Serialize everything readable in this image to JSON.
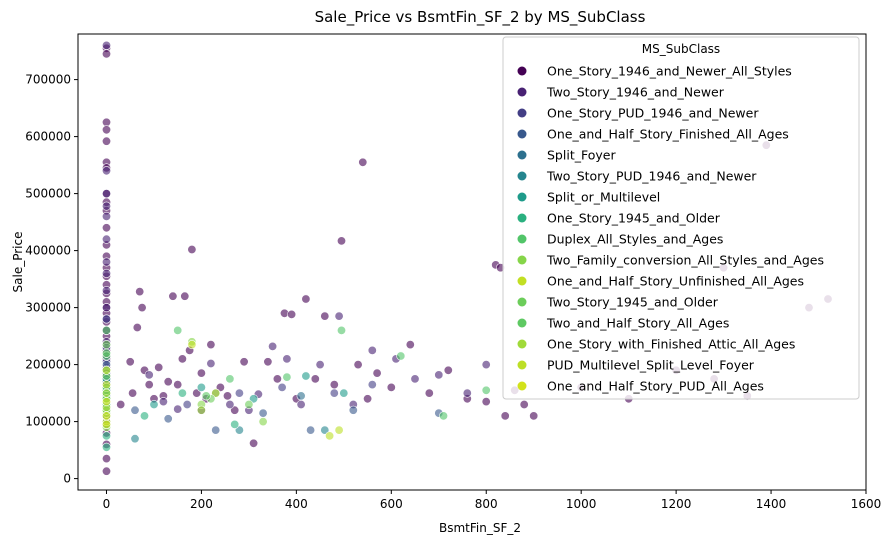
{
  "chart_data": {
    "type": "scatter",
    "title": "Sale_Price vs BsmtFin_SF_2 by MS_SubClass",
    "xlabel": "BsmtFin_SF_2",
    "ylabel": "Sale_Price",
    "xlim": [
      -60,
      1600
    ],
    "ylim": [
      -20000,
      780000
    ],
    "xticks": [
      0,
      200,
      400,
      600,
      800,
      1000,
      1200,
      1400,
      1600
    ],
    "yticks": [
      0,
      100000,
      200000,
      300000,
      400000,
      500000,
      600000,
      700000
    ],
    "grid": false,
    "legend": {
      "title": "MS_SubClass",
      "placement": "top-right"
    },
    "series": [
      {
        "name": "One_Story_1946_and_Newer_All_Styles",
        "color": "#440154",
        "points": [
          [
            0,
            755000
          ],
          [
            0,
            745000
          ],
          [
            0,
            625000
          ],
          [
            0,
            612000
          ],
          [
            0,
            592000
          ],
          [
            0,
            555000
          ],
          [
            0,
            545000
          ],
          [
            0,
            500000
          ],
          [
            0,
            485000
          ],
          [
            0,
            470000
          ],
          [
            0,
            440000
          ],
          [
            0,
            410000
          ],
          [
            0,
            390000
          ],
          [
            0,
            370000
          ],
          [
            0,
            355000
          ],
          [
            0,
            340000
          ],
          [
            0,
            325000
          ],
          [
            0,
            310000
          ],
          [
            0,
            300000
          ],
          [
            0,
            290000
          ],
          [
            0,
            275000
          ],
          [
            0,
            260000
          ],
          [
            0,
            250000
          ],
          [
            0,
            235000
          ],
          [
            0,
            225000
          ],
          [
            0,
            210000
          ],
          [
            0,
            195000
          ],
          [
            0,
            180000
          ],
          [
            0,
            165000
          ],
          [
            0,
            150000
          ],
          [
            0,
            140000
          ],
          [
            0,
            125000
          ],
          [
            0,
            110000
          ],
          [
            0,
            95000
          ],
          [
            0,
            80000
          ],
          [
            0,
            60000
          ],
          [
            0,
            35000
          ],
          [
            0,
            13000
          ],
          [
            30,
            130000
          ],
          [
            50,
            205000
          ],
          [
            55,
            150000
          ],
          [
            65,
            265000
          ],
          [
            70,
            328000
          ],
          [
            75,
            300000
          ],
          [
            80,
            190000
          ],
          [
            90,
            165000
          ],
          [
            100,
            140000
          ],
          [
            110,
            195000
          ],
          [
            120,
            145000
          ],
          [
            130,
            170000
          ],
          [
            140,
            320000
          ],
          [
            150,
            165000
          ],
          [
            160,
            210000
          ],
          [
            165,
            320000
          ],
          [
            175,
            225000
          ],
          [
            180,
            402000
          ],
          [
            190,
            150000
          ],
          [
            200,
            185000
          ],
          [
            210,
            140000
          ],
          [
            220,
            235000
          ],
          [
            240,
            160000
          ],
          [
            255,
            145000
          ],
          [
            270,
            120000
          ],
          [
            290,
            205000
          ],
          [
            310,
            62000
          ],
          [
            340,
            205000
          ],
          [
            360,
            175000
          ],
          [
            375,
            290000
          ],
          [
            390,
            288000
          ],
          [
            400,
            140000
          ],
          [
            420,
            315000
          ],
          [
            440,
            175000
          ],
          [
            460,
            285000
          ],
          [
            480,
            165000
          ],
          [
            495,
            417000
          ],
          [
            530,
            200000
          ],
          [
            540,
            555000
          ],
          [
            550,
            140000
          ],
          [
            570,
            185000
          ],
          [
            600,
            160000
          ],
          [
            640,
            235000
          ],
          [
            680,
            150000
          ],
          [
            720,
            190000
          ],
          [
            760,
            140000
          ],
          [
            800,
            135000
          ],
          [
            820,
            375000
          ],
          [
            830,
            370000
          ],
          [
            840,
            110000
          ],
          [
            860,
            155000
          ],
          [
            880,
            130000
          ],
          [
            900,
            110000
          ],
          [
            1000,
            160000
          ],
          [
            1100,
            140000
          ],
          [
            1200,
            190000
          ],
          [
            1280,
            175000
          ],
          [
            1300,
            370000
          ],
          [
            1350,
            145000
          ],
          [
            1390,
            585000
          ],
          [
            1480,
            300000
          ],
          [
            1520,
            315000
          ]
        ]
      },
      {
        "name": "Two_Story_1946_and_Newer",
        "color": "#482173",
        "points": [
          [
            0,
            760000
          ],
          [
            0,
            540000
          ],
          [
            0,
            500000
          ],
          [
            0,
            478000
          ],
          [
            0,
            460000
          ],
          [
            0,
            420000
          ],
          [
            0,
            380000
          ],
          [
            0,
            360000
          ],
          [
            0,
            330000
          ],
          [
            0,
            300000
          ],
          [
            0,
            280000
          ],
          [
            0,
            240000
          ],
          [
            0,
            215000
          ],
          [
            0,
            190000
          ],
          [
            0,
            175000
          ],
          [
            0,
            155000
          ],
          [
            0,
            120000
          ],
          [
            0,
            95000
          ],
          [
            90,
            182000
          ],
          [
            120,
            135000
          ],
          [
            150,
            122000
          ],
          [
            200,
            120000
          ],
          [
            220,
            202000
          ],
          [
            260,
            130000
          ],
          [
            300,
            120000
          ],
          [
            320,
            148000
          ],
          [
            350,
            232000
          ],
          [
            380,
            210000
          ],
          [
            410,
            130000
          ],
          [
            450,
            200000
          ],
          [
            490,
            285000
          ],
          [
            520,
            130000
          ],
          [
            560,
            225000
          ],
          [
            610,
            210000
          ],
          [
            650,
            175000
          ],
          [
            700,
            182000
          ],
          [
            760,
            150000
          ],
          [
            800,
            200000
          ]
        ]
      },
      {
        "name": "One_Story_PUD_1946_and_Newer",
        "color": "#433e85",
        "points": [
          [
            0,
            280000
          ],
          [
            0,
            260000
          ],
          [
            0,
            230000
          ],
          [
            0,
            205000
          ],
          [
            0,
            185000
          ],
          [
            0,
            170000
          ],
          [
            0,
            145000
          ],
          [
            170,
            130000
          ],
          [
            280,
            150000
          ],
          [
            370,
            160000
          ],
          [
            480,
            150000
          ],
          [
            560,
            165000
          ]
        ]
      },
      {
        "name": "One_and_Half_Story_Finished_All_Ages",
        "color": "#38588c",
        "points": [
          [
            0,
            200000
          ],
          [
            0,
            180000
          ],
          [
            0,
            160000
          ],
          [
            0,
            140000
          ],
          [
            0,
            118000
          ],
          [
            0,
            100000
          ],
          [
            60,
            120000
          ],
          [
            130,
            105000
          ],
          [
            230,
            85000
          ],
          [
            330,
            115000
          ],
          [
            430,
            85000
          ],
          [
            520,
            120000
          ],
          [
            700,
            115000
          ]
        ]
      },
      {
        "name": "Split_Foyer",
        "color": "#2d708e",
        "points": [
          [
            0,
            170000
          ],
          [
            0,
            155000
          ],
          [
            0,
            140000
          ],
          [
            0,
            130000
          ],
          [
            230,
            150000
          ],
          [
            410,
            145000
          ]
        ]
      },
      {
        "name": "Two_Story_PUD_1946_and_Newer",
        "color": "#25858e",
        "points": [
          [
            0,
            160000
          ],
          [
            0,
            145000
          ],
          [
            0,
            128000
          ],
          [
            60,
            70000
          ],
          [
            280,
            85000
          ],
          [
            460,
            85000
          ]
        ]
      },
      {
        "name": "Split_or_Multilevel",
        "color": "#1e9b8a",
        "points": [
          [
            0,
            175000
          ],
          [
            0,
            155000
          ],
          [
            0,
            140000
          ],
          [
            100,
            130000
          ],
          [
            200,
            160000
          ],
          [
            310,
            140000
          ],
          [
            420,
            180000
          ],
          [
            500,
            150000
          ]
        ]
      },
      {
        "name": "One_Story_1945_and_Older",
        "color": "#2ab07f",
        "points": [
          [
            0,
            130000
          ],
          [
            0,
            110000
          ],
          [
            0,
            95000
          ],
          [
            0,
            75000
          ],
          [
            0,
            55000
          ],
          [
            80,
            110000
          ],
          [
            160,
            150000
          ],
          [
            270,
            95000
          ]
        ]
      },
      {
        "name": "Duplex_All_Styles_and_Ages",
        "color": "#52c569",
        "points": [
          [
            0,
            215000
          ],
          [
            0,
            190000
          ],
          [
            0,
            150000
          ],
          [
            0,
            130000
          ],
          [
            150,
            260000
          ],
          [
            260,
            175000
          ],
          [
            380,
            178000
          ],
          [
            495,
            260000
          ],
          [
            620,
            215000
          ],
          [
            710,
            110000
          ],
          [
            800,
            155000
          ]
        ]
      },
      {
        "name": "Two_Family_conversion_All_Styles_and_Ages",
        "color": "#86d549",
        "points": [
          [
            0,
            140000
          ],
          [
            0,
            115000
          ],
          [
            0,
            90000
          ],
          [
            180,
            240000
          ],
          [
            200,
            130000
          ],
          [
            330,
            100000
          ]
        ]
      },
      {
        "name": "One_and_Half_Story_Unfinished_All_Ages",
        "color": "#c2df23",
        "points": [
          [
            0,
            120000
          ],
          [
            0,
            100000
          ],
          [
            180,
            235000
          ],
          [
            230,
            150000
          ]
        ]
      },
      {
        "name": "Two_Story_1945_and_Older",
        "color": "#6ccd5a",
        "points": [
          [
            0,
            235000
          ],
          [
            0,
            180000
          ],
          [
            0,
            160000
          ],
          [
            0,
            140000
          ],
          [
            0,
            120000
          ],
          [
            220,
            140000
          ],
          [
            300,
            130000
          ]
        ]
      },
      {
        "name": "Two_and_Half_Story_All_Ages",
        "color": "#5ec962",
        "points": [
          [
            0,
            260000
          ],
          [
            0,
            220000
          ],
          [
            210,
            145000
          ]
        ]
      },
      {
        "name": "One_Story_with_Finished_Attic_All_Ages",
        "color": "#a0da39",
        "points": [
          [
            0,
            150000
          ],
          [
            0,
            125000
          ],
          [
            200,
            120000
          ]
        ]
      },
      {
        "name": "PUD_Multilevel_Split_Level_Foyer",
        "color": "#bddf26",
        "points": [
          [
            0,
            190000
          ],
          [
            0,
            165000
          ],
          [
            470,
            75000
          ],
          [
            490,
            85000
          ]
        ]
      },
      {
        "name": "One_and_Half_Story_PUD_All_Ages",
        "color": "#d2e21b",
        "points": [
          [
            0,
            135000
          ],
          [
            0,
            110000
          ],
          [
            0,
            95000
          ]
        ]
      }
    ]
  }
}
